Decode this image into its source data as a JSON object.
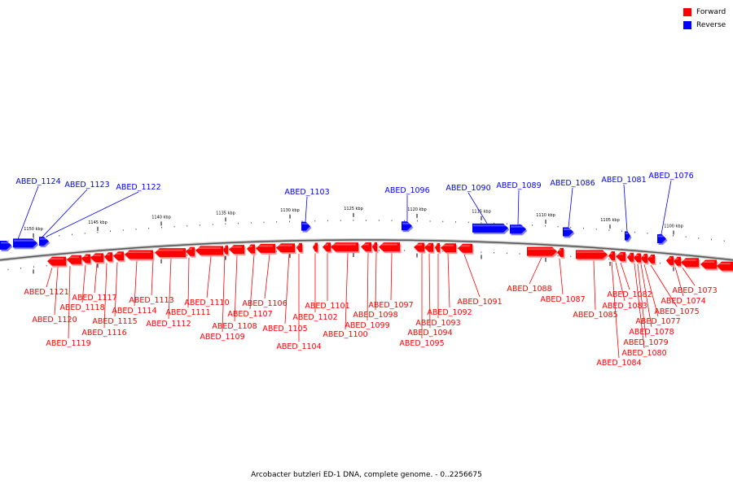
{
  "legend": {
    "forward_label": "Forward",
    "reverse_label": "Reverse",
    "forward_color": "#ff0000",
    "reverse_color": "#0000ff"
  },
  "caption": "Arcobacter butzleri ED-1 DNA, complete genome. - 0..2256675",
  "ticks": [
    {
      "text": "1150 kbp"
    },
    {
      "text": "1145 kbp"
    },
    {
      "text": "1140 kbp"
    },
    {
      "text": "1135 kbp"
    },
    {
      "text": "1130 kbp"
    },
    {
      "text": "1125 kbp"
    },
    {
      "text": "1120 kbp"
    },
    {
      "text": "1115 kbp"
    },
    {
      "text": "1110 kbp"
    },
    {
      "text": "1105 kbp"
    },
    {
      "text": "1100 kbp"
    }
  ],
  "reverse_genes": [
    {
      "label": "ABED_1124"
    },
    {
      "label": "ABED_1123"
    },
    {
      "label": "ABED_1122"
    },
    {
      "label": "ABED_1103"
    },
    {
      "label": "ABED_1096"
    },
    {
      "label": "ABED_1090"
    },
    {
      "label": "ABED_1089"
    },
    {
      "label": "ABED_1086"
    },
    {
      "label": "ABED_1081"
    },
    {
      "label": "ABED_1076"
    }
  ],
  "forward_genes": [
    {
      "label": "ABED_1121"
    },
    {
      "label": "ABED_1120"
    },
    {
      "label": "ABED_1119"
    },
    {
      "label": "ABED_1118"
    },
    {
      "label": "ABED_1117"
    },
    {
      "label": "ABED_1116"
    },
    {
      "label": "ABED_1115"
    },
    {
      "label": "ABED_1114"
    },
    {
      "label": "ABED_1113"
    },
    {
      "label": "ABED_1112"
    },
    {
      "label": "ABED_1111"
    },
    {
      "label": "ABED_1110"
    },
    {
      "label": "ABED_1109"
    },
    {
      "label": "ABED_1108"
    },
    {
      "label": "ABED_1107"
    },
    {
      "label": "ABED_1106"
    },
    {
      "label": "ABED_1105"
    },
    {
      "label": "ABED_1104"
    },
    {
      "label": "ABED_1102"
    },
    {
      "label": "ABED_1101"
    },
    {
      "label": "ABED_1100"
    },
    {
      "label": "ABED_1099"
    },
    {
      "label": "ABED_1098"
    },
    {
      "label": "ABED_1097"
    },
    {
      "label": "ABED_1095"
    },
    {
      "label": "ABED_1094"
    },
    {
      "label": "ABED_1093"
    },
    {
      "label": "ABED_1092"
    },
    {
      "label": "ABED_1091"
    },
    {
      "label": "ABED_1088"
    },
    {
      "label": "ABED_1087"
    },
    {
      "label": "ABED_1085"
    },
    {
      "label": "ABED_1084"
    },
    {
      "label": "ABED_1083"
    },
    {
      "label": "ABED_1082"
    },
    {
      "label": "ABED_1080"
    },
    {
      "label": "ABED_1079"
    },
    {
      "label": "ABED_1078"
    },
    {
      "label": "ABED_1077"
    },
    {
      "label": "ABED_1075"
    },
    {
      "label": "ABED_1074"
    },
    {
      "label": "ABED_1073"
    }
  ]
}
